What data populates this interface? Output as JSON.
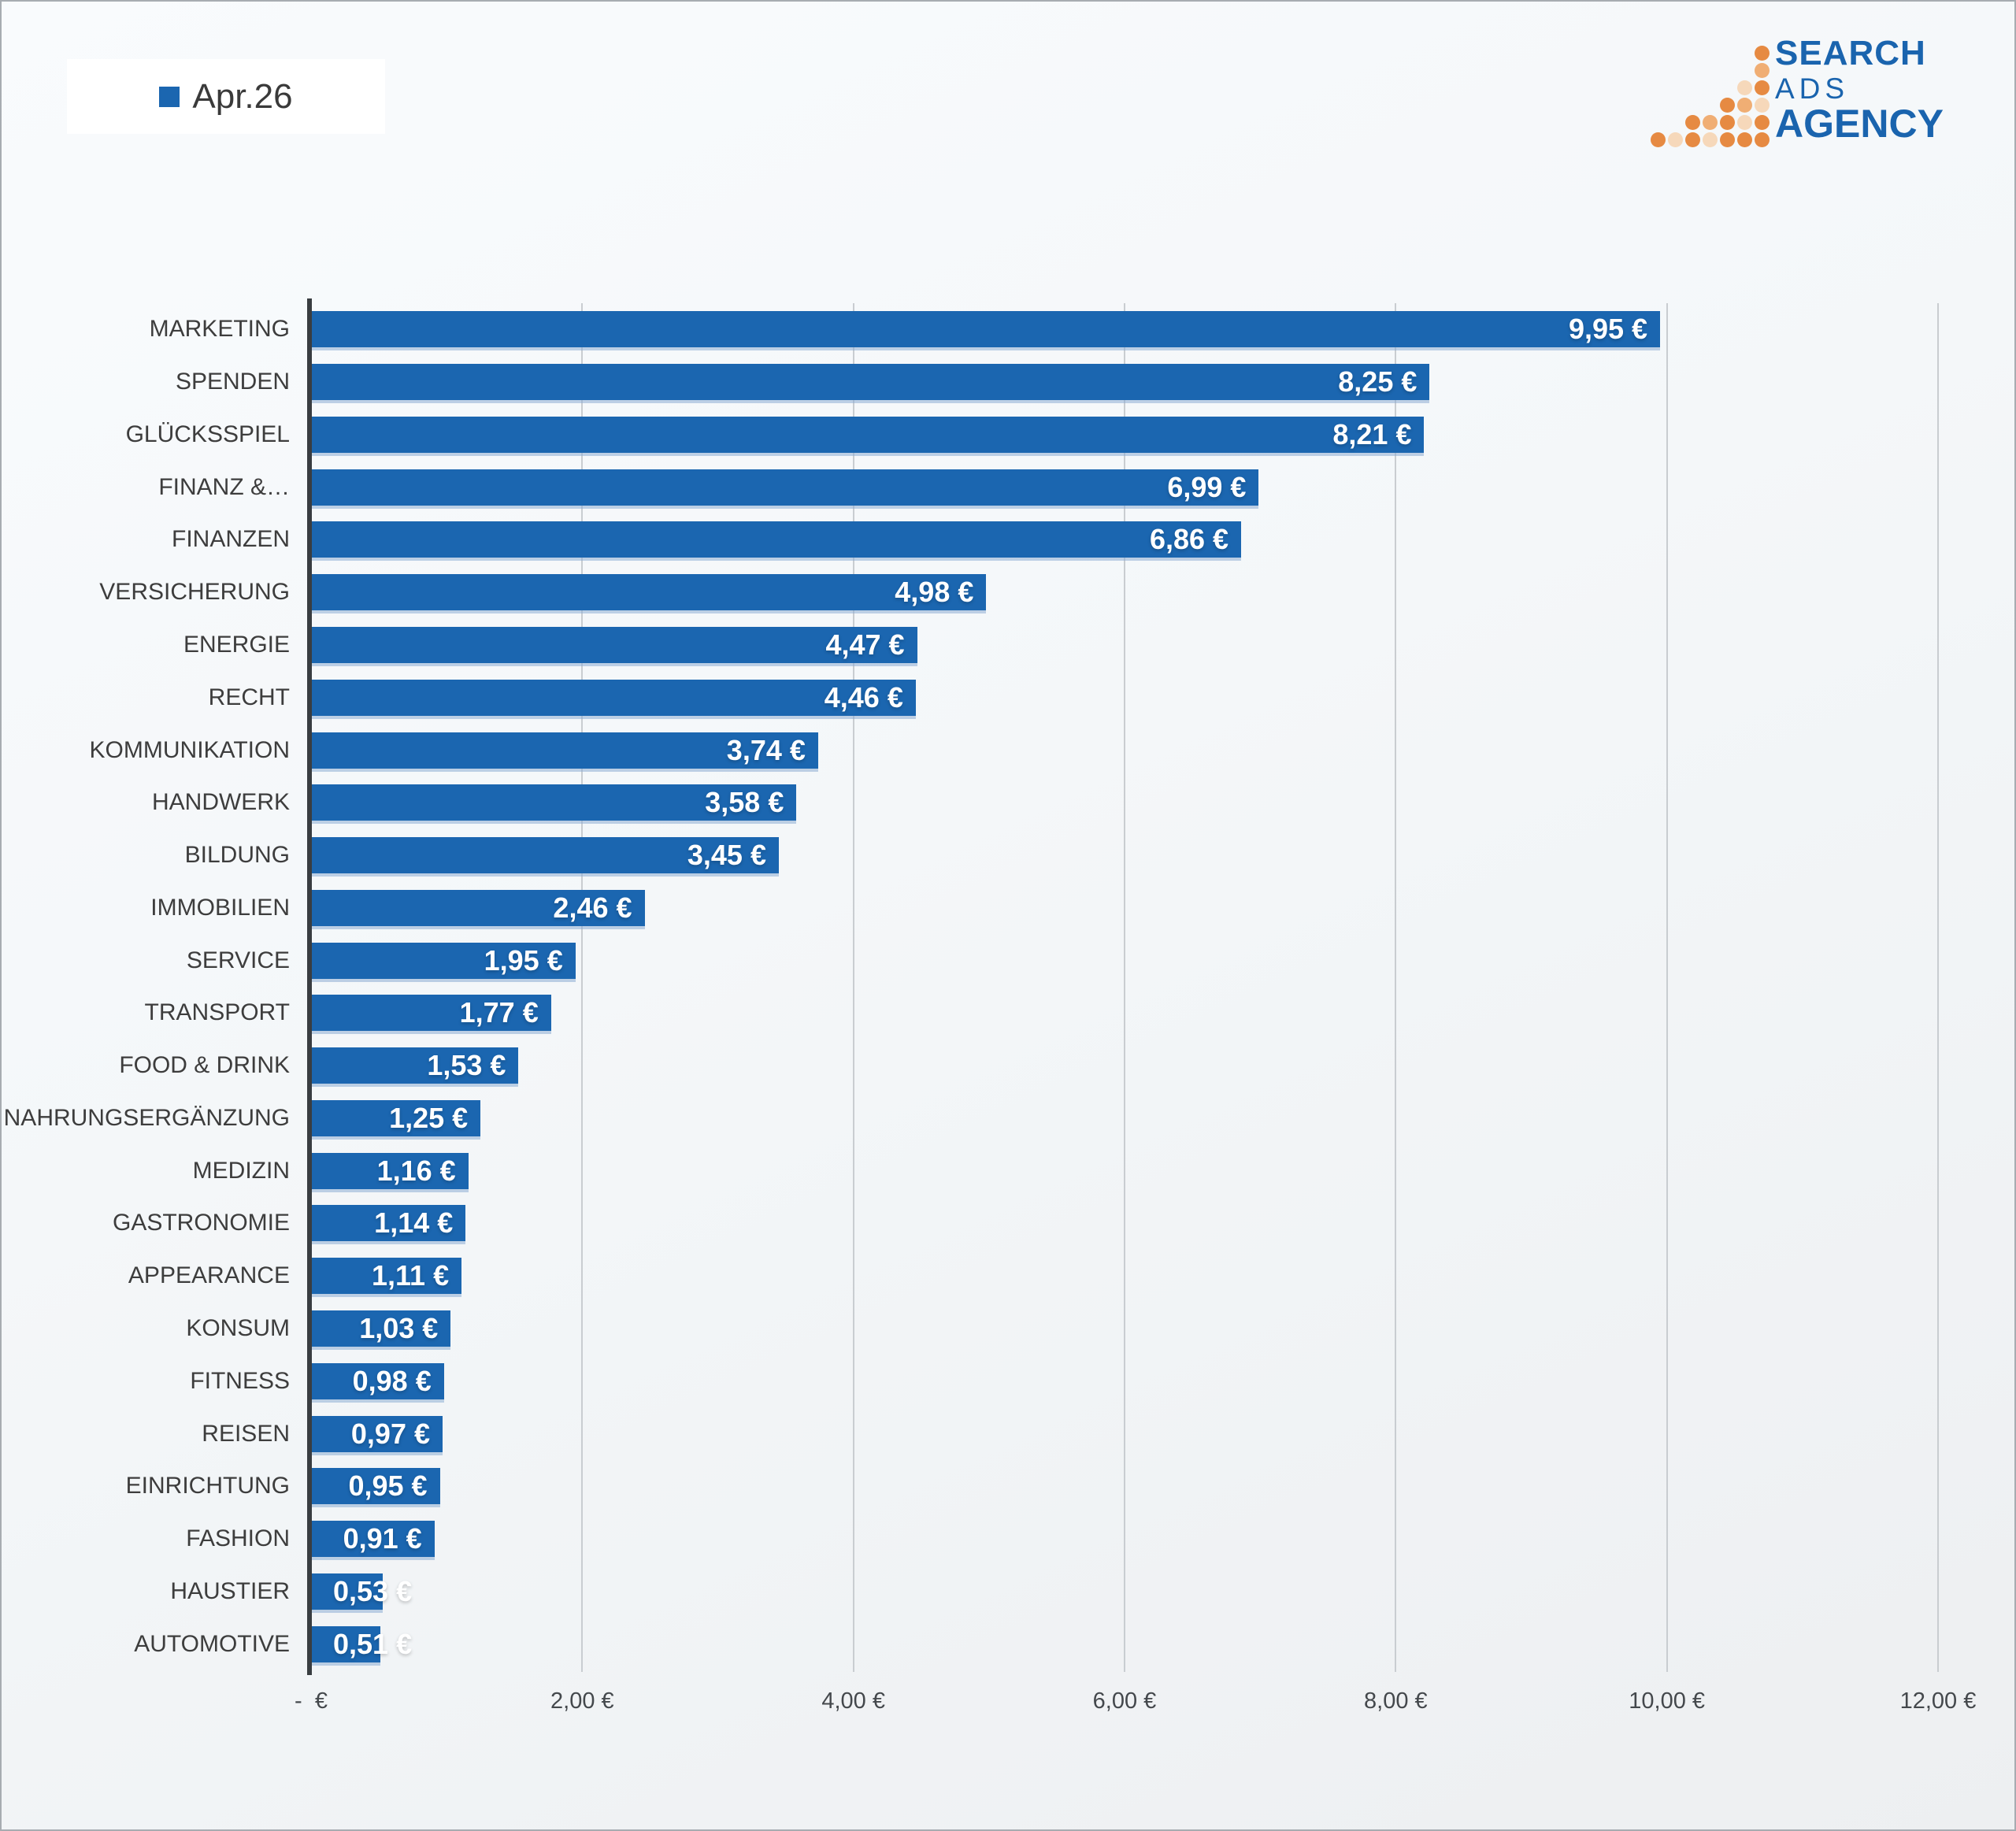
{
  "legend": {
    "label": "Apr.26",
    "marker_color": "#1B66B0"
  },
  "logo": {
    "line1": "SEARCH",
    "line2": "ADS",
    "line3": "AGENCY",
    "text_color": "#1A64AE",
    "dot_shades": {
      "dark": "#E68A42",
      "mid": "#F0AE74",
      "light": "#F6D8BA"
    },
    "dots": [
      [
        1,
        7,
        "dark"
      ],
      [
        2,
        7,
        "mid"
      ],
      [
        3,
        6,
        "light"
      ],
      [
        3,
        7,
        "dark"
      ],
      [
        4,
        5,
        "dark"
      ],
      [
        4,
        6,
        "mid"
      ],
      [
        4,
        7,
        "light"
      ],
      [
        5,
        3,
        "dark"
      ],
      [
        5,
        4,
        "mid"
      ],
      [
        5,
        5,
        "dark"
      ],
      [
        5,
        6,
        "light"
      ],
      [
        5,
        7,
        "dark"
      ],
      [
        6,
        1,
        "dark"
      ],
      [
        6,
        2,
        "light"
      ],
      [
        6,
        3,
        "dark"
      ],
      [
        6,
        4,
        "light"
      ],
      [
        6,
        5,
        "dark"
      ],
      [
        6,
        6,
        "dark"
      ],
      [
        6,
        7,
        "dark"
      ]
    ]
  },
  "chart_data": {
    "type": "bar",
    "orientation": "horizontal",
    "series_name": "Apr.26",
    "categories": [
      "MARKETING",
      "SPENDEN",
      "GLÜCKSSPIEL",
      "FINANZ &…",
      "FINANZEN",
      "VERSICHERUNG",
      "ENERGIE",
      "RECHT",
      "KOMMUNIKATION",
      "HANDWERK",
      "BILDUNG",
      "IMMOBILIEN",
      "SERVICE",
      "TRANSPORT",
      "FOOD & DRINK",
      "NAHRUNGSERGÄNZUNG",
      "MEDIZIN",
      "GASTRONOMIE",
      "APPEARANCE",
      "KONSUM",
      "FITNESS",
      "REISEN",
      "EINRICHTUNG",
      "FASHION",
      "HAUSTIER",
      "AUTOMOTIVE"
    ],
    "values": [
      9.95,
      8.25,
      8.21,
      6.99,
      6.86,
      4.98,
      4.47,
      4.46,
      3.74,
      3.58,
      3.45,
      2.46,
      1.95,
      1.77,
      1.53,
      1.25,
      1.16,
      1.14,
      1.11,
      1.03,
      0.98,
      0.97,
      0.95,
      0.91,
      0.53,
      0.51
    ],
    "value_labels": [
      "9,95 €",
      "8,25 €",
      "8,21 €",
      "6,99 €",
      "6,86 €",
      "4,98 €",
      "4,47 €",
      "4,46 €",
      "3,74 €",
      "3,58 €",
      "3,45 €",
      "2,46 €",
      "1,95 €",
      "1,77 €",
      "1,53 €",
      "1,25 €",
      "1,16 €",
      "1,14 €",
      "1,11 €",
      "1,03 €",
      "0,98 €",
      "0,97 €",
      "0,95 €",
      "0,91 €",
      "0,53 €",
      "0,51 €"
    ],
    "xlim": [
      0,
      12
    ],
    "x_tick_labels": [
      "-  €",
      "2,00 €",
      "4,00 €",
      "6,00 €",
      "8,00 €",
      "10,00 €",
      "12,00 €"
    ],
    "x_tick_values": [
      0,
      2,
      4,
      6,
      8,
      10,
      12
    ],
    "bar_color": "#1B66B0",
    "value_label_color": "#FFFFFF",
    "category_label_color": "#3D3D3D",
    "grid": true,
    "legend_position": "top-left"
  }
}
